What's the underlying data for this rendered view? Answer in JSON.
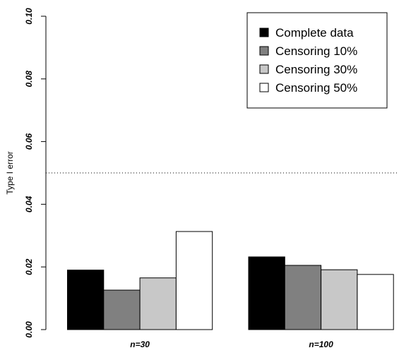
{
  "chart_data": {
    "type": "bar",
    "ylabel": "Type I error",
    "categories": [
      "n=30",
      "n=100"
    ],
    "series": [
      {
        "name": "Complete data",
        "color": "#000000",
        "values": [
          0.019,
          0.0232
        ]
      },
      {
        "name": "Censoring 10%",
        "color": "#808080",
        "values": [
          0.0126,
          0.0205
        ]
      },
      {
        "name": "Censoring 30%",
        "color": "#c8c8c8",
        "values": [
          0.0165,
          0.0191
        ]
      },
      {
        "name": "Censoring 50%",
        "color": "#ffffff",
        "values": [
          0.0313,
          0.0176
        ]
      }
    ],
    "ylim": [
      0,
      0.1
    ],
    "yticks": [
      {
        "value": 0,
        "label": "0.00"
      },
      {
        "value": 0.02,
        "label": "0.02"
      },
      {
        "value": 0.04,
        "label": "0.04"
      },
      {
        "value": 0.06,
        "label": "0.06"
      },
      {
        "value": 0.08,
        "label": "0.08"
      },
      {
        "value": 0.1,
        "label": "0.10"
      }
    ],
    "hline": 0.05,
    "legend": "top-right"
  }
}
